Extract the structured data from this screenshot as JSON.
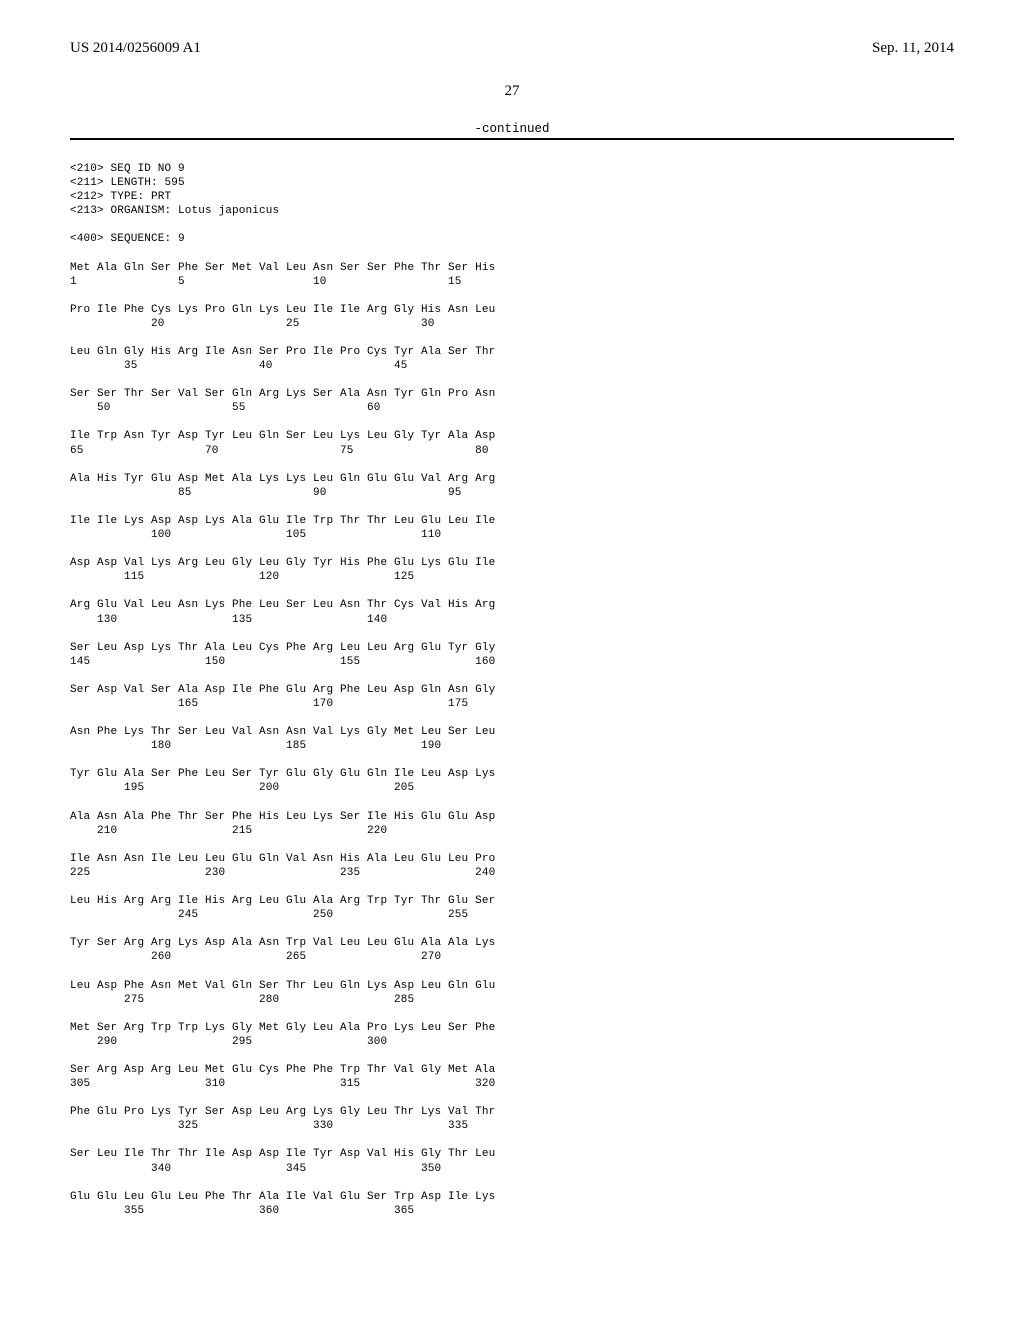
{
  "header": {
    "publication_number": "US 2014/0256009 A1",
    "publication_date": "Sep. 11, 2014"
  },
  "page_number": "27",
  "continued_label": "-continued",
  "seq_meta": {
    "l1": "<210> SEQ ID NO 9",
    "l2": "<211> LENGTH: 595",
    "l3": "<212> TYPE: PRT",
    "l4": "<213> ORGANISM: Lotus japonicus",
    "l5": "<400> SEQUENCE: 9"
  },
  "rows": [
    {
      "aa": "Met Ala Gln Ser Phe Ser Met Val Leu Asn Ser Ser Phe Thr Ser His",
      "n": "1               5                   10                  15"
    },
    {
      "aa": "Pro Ile Phe Cys Lys Pro Gln Lys Leu Ile Ile Arg Gly His Asn Leu",
      "n": "            20                  25                  30"
    },
    {
      "aa": "Leu Gln Gly His Arg Ile Asn Ser Pro Ile Pro Cys Tyr Ala Ser Thr",
      "n": "        35                  40                  45"
    },
    {
      "aa": "Ser Ser Thr Ser Val Ser Gln Arg Lys Ser Ala Asn Tyr Gln Pro Asn",
      "n": "    50                  55                  60"
    },
    {
      "aa": "Ile Trp Asn Tyr Asp Tyr Leu Gln Ser Leu Lys Leu Gly Tyr Ala Asp",
      "n": "65                  70                  75                  80"
    },
    {
      "aa": "Ala His Tyr Glu Asp Met Ala Lys Lys Leu Gln Glu Glu Val Arg Arg",
      "n": "                85                  90                  95"
    },
    {
      "aa": "Ile Ile Lys Asp Asp Lys Ala Glu Ile Trp Thr Thr Leu Glu Leu Ile",
      "n": "            100                 105                 110"
    },
    {
      "aa": "Asp Asp Val Lys Arg Leu Gly Leu Gly Tyr His Phe Glu Lys Glu Ile",
      "n": "        115                 120                 125"
    },
    {
      "aa": "Arg Glu Val Leu Asn Lys Phe Leu Ser Leu Asn Thr Cys Val His Arg",
      "n": "    130                 135                 140"
    },
    {
      "aa": "Ser Leu Asp Lys Thr Ala Leu Cys Phe Arg Leu Leu Arg Glu Tyr Gly",
      "n": "145                 150                 155                 160"
    },
    {
      "aa": "Ser Asp Val Ser Ala Asp Ile Phe Glu Arg Phe Leu Asp Gln Asn Gly",
      "n": "                165                 170                 175"
    },
    {
      "aa": "Asn Phe Lys Thr Ser Leu Val Asn Asn Val Lys Gly Met Leu Ser Leu",
      "n": "            180                 185                 190"
    },
    {
      "aa": "Tyr Glu Ala Ser Phe Leu Ser Tyr Glu Gly Glu Gln Ile Leu Asp Lys",
      "n": "        195                 200                 205"
    },
    {
      "aa": "Ala Asn Ala Phe Thr Ser Phe His Leu Lys Ser Ile His Glu Glu Asp",
      "n": "    210                 215                 220"
    },
    {
      "aa": "Ile Asn Asn Ile Leu Leu Glu Gln Val Asn His Ala Leu Glu Leu Pro",
      "n": "225                 230                 235                 240"
    },
    {
      "aa": "Leu His Arg Arg Ile His Arg Leu Glu Ala Arg Trp Tyr Thr Glu Ser",
      "n": "                245                 250                 255"
    },
    {
      "aa": "Tyr Ser Arg Arg Lys Asp Ala Asn Trp Val Leu Leu Glu Ala Ala Lys",
      "n": "            260                 265                 270"
    },
    {
      "aa": "Leu Asp Phe Asn Met Val Gln Ser Thr Leu Gln Lys Asp Leu Gln Glu",
      "n": "        275                 280                 285"
    },
    {
      "aa": "Met Ser Arg Trp Trp Lys Gly Met Gly Leu Ala Pro Lys Leu Ser Phe",
      "n": "    290                 295                 300"
    },
    {
      "aa": "Ser Arg Asp Arg Leu Met Glu Cys Phe Phe Trp Thr Val Gly Met Ala",
      "n": "305                 310                 315                 320"
    },
    {
      "aa": "Phe Glu Pro Lys Tyr Ser Asp Leu Arg Lys Gly Leu Thr Lys Val Thr",
      "n": "                325                 330                 335"
    },
    {
      "aa": "Ser Leu Ile Thr Thr Ile Asp Asp Ile Tyr Asp Val His Gly Thr Leu",
      "n": "            340                 345                 350"
    },
    {
      "aa": "Glu Glu Leu Glu Leu Phe Thr Ala Ile Val Glu Ser Trp Asp Ile Lys",
      "n": "        355                 360                 365"
    }
  ]
}
